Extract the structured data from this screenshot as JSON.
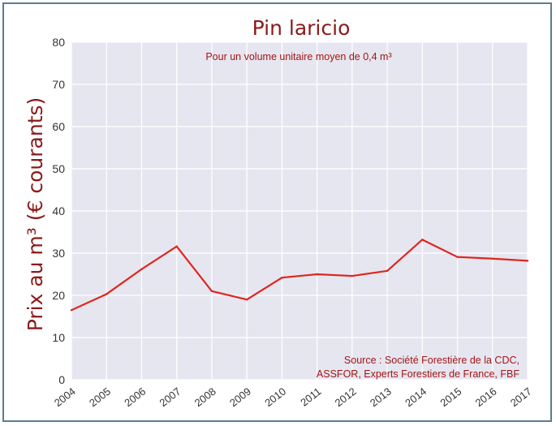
{
  "colors": {
    "plot_background": "#e6e6f0",
    "grid": "#ffffff",
    "line": "#e0251b",
    "title_text": "#8b1a1a",
    "annotation_text": "#a31515",
    "frame_border": "#5b7d8f"
  },
  "chart_data": {
    "type": "line",
    "title": "Pin laricio",
    "subtitle": "Pour un volume unitaire moyen de 0,4 m³",
    "ylabel": "Prix au m³ (€ courants)",
    "xlabel": "",
    "source": [
      "Source : Société Forestière de la CDC,",
      "ASSFOR, Experts Forestiers de France, FBF"
    ],
    "x": [
      "2004",
      "2005",
      "2006",
      "2007",
      "2008",
      "2009",
      "2010",
      "2011",
      "2012",
      "2013",
      "2014",
      "2015",
      "2016",
      "2017"
    ],
    "y": [
      16.5,
      20.3,
      26.2,
      31.6,
      21.0,
      19.0,
      24.2,
      25.0,
      24.6,
      25.8,
      33.2,
      29.1,
      28.7,
      28.2
    ],
    "ylim": [
      0,
      80
    ],
    "yticks": [
      0,
      10,
      20,
      30,
      40,
      50,
      60,
      70,
      80
    ],
    "grid": true,
    "legend": "none"
  }
}
